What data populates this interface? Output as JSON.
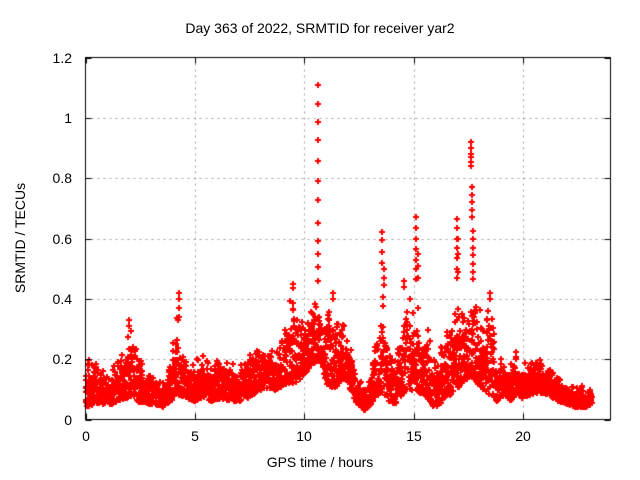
{
  "chart_data": {
    "type": "scatter",
    "title": "Day 363 of 2022, SRMTID for receiver yar2",
    "xlabel": "GPS time / hours",
    "ylabel": "SRMTID / TECUs",
    "xlim": [
      0,
      24
    ],
    "ylim": [
      0,
      1.2
    ],
    "xticks": [
      {
        "v": 0,
        "label": "0"
      },
      {
        "v": 5,
        "label": "5"
      },
      {
        "v": 10,
        "label": "10"
      },
      {
        "v": 15,
        "label": "15"
      },
      {
        "v": 20,
        "label": "20"
      }
    ],
    "yticks": [
      {
        "v": 0,
        "label": "0"
      },
      {
        "v": 0.2,
        "label": "0.2"
      },
      {
        "v": 0.4,
        "label": "0.4"
      },
      {
        "v": 0.6,
        "label": "0.6"
      },
      {
        "v": 0.8,
        "label": "0.8"
      },
      {
        "v": 1,
        "label": "1"
      },
      {
        "v": 1.2,
        "label": "1.2"
      }
    ],
    "grid": true,
    "legend": "none",
    "marker": "plus",
    "marker_color": "#ff0000",
    "grid_color": "#9e9e9e",
    "axis_color": "#000000",
    "background_color": "#ffffff",
    "data_start_hour": 0.0,
    "data_end_hour": 23.15,
    "max_point": {
      "x": 10.65,
      "y": 1.11
    },
    "band_points_per_hour": 110,
    "seed": 42,
    "envelope": [
      [
        0.0,
        0.04,
        0.18
      ],
      [
        0.3,
        0.05,
        0.22
      ],
      [
        0.7,
        0.05,
        0.19
      ],
      [
        1.1,
        0.05,
        0.16
      ],
      [
        1.5,
        0.06,
        0.2
      ],
      [
        1.85,
        0.07,
        0.3
      ],
      [
        2.05,
        0.07,
        0.33
      ],
      [
        2.35,
        0.06,
        0.28
      ],
      [
        2.7,
        0.05,
        0.17
      ],
      [
        3.1,
        0.05,
        0.15
      ],
      [
        3.5,
        0.04,
        0.14
      ],
      [
        3.9,
        0.06,
        0.2
      ],
      [
        4.2,
        0.08,
        0.38
      ],
      [
        4.35,
        0.08,
        0.3
      ],
      [
        4.6,
        0.07,
        0.22
      ],
      [
        5.0,
        0.06,
        0.2
      ],
      [
        5.4,
        0.07,
        0.23
      ],
      [
        5.8,
        0.06,
        0.19
      ],
      [
        6.2,
        0.07,
        0.22
      ],
      [
        6.6,
        0.06,
        0.19
      ],
      [
        7.0,
        0.06,
        0.2
      ],
      [
        7.4,
        0.07,
        0.24
      ],
      [
        7.8,
        0.09,
        0.28
      ],
      [
        8.2,
        0.1,
        0.27
      ],
      [
        8.6,
        0.09,
        0.23
      ],
      [
        9.0,
        0.11,
        0.28
      ],
      [
        9.35,
        0.12,
        0.42
      ],
      [
        9.6,
        0.12,
        0.4
      ],
      [
        9.9,
        0.14,
        0.36
      ],
      [
        10.2,
        0.17,
        0.38
      ],
      [
        10.5,
        0.19,
        0.42
      ],
      [
        10.75,
        0.2,
        0.38
      ],
      [
        11.0,
        0.12,
        0.36
      ],
      [
        11.3,
        0.1,
        0.4
      ],
      [
        11.6,
        0.12,
        0.34
      ],
      [
        11.9,
        0.14,
        0.32
      ],
      [
        12.15,
        0.09,
        0.26
      ],
      [
        12.45,
        0.05,
        0.14
      ],
      [
        12.75,
        0.03,
        0.12
      ],
      [
        13.05,
        0.05,
        0.18
      ],
      [
        13.35,
        0.08,
        0.33
      ],
      [
        13.6,
        0.09,
        0.42
      ],
      [
        13.85,
        0.06,
        0.24
      ],
      [
        14.15,
        0.05,
        0.21
      ],
      [
        14.5,
        0.08,
        0.34
      ],
      [
        14.85,
        0.1,
        0.43
      ],
      [
        15.15,
        0.09,
        0.38
      ],
      [
        15.45,
        0.08,
        0.36
      ],
      [
        15.75,
        0.06,
        0.28
      ],
      [
        16.05,
        0.03,
        0.2
      ],
      [
        16.35,
        0.07,
        0.33
      ],
      [
        16.65,
        0.08,
        0.3
      ],
      [
        16.95,
        0.1,
        0.42
      ],
      [
        17.25,
        0.12,
        0.38
      ],
      [
        17.6,
        0.14,
        0.44
      ],
      [
        17.9,
        0.12,
        0.42
      ],
      [
        18.2,
        0.1,
        0.36
      ],
      [
        18.5,
        0.08,
        0.4
      ],
      [
        18.8,
        0.06,
        0.22
      ],
      [
        19.1,
        0.08,
        0.23
      ],
      [
        19.4,
        0.06,
        0.18
      ],
      [
        19.7,
        0.08,
        0.24
      ],
      [
        20.0,
        0.07,
        0.19
      ],
      [
        20.4,
        0.08,
        0.21
      ],
      [
        20.8,
        0.09,
        0.2
      ],
      [
        21.2,
        0.08,
        0.18
      ],
      [
        21.6,
        0.06,
        0.16
      ],
      [
        22.0,
        0.05,
        0.13
      ],
      [
        22.4,
        0.04,
        0.12
      ],
      [
        22.8,
        0.04,
        0.11
      ],
      [
        23.15,
        0.05,
        0.1
      ]
    ],
    "spikes": [
      [
        10.65,
        [
          1.11,
          1.045,
          0.985,
          0.925,
          0.858,
          0.792,
          0.726,
          0.65,
          0.593,
          0.55,
          0.505,
          0.46
        ]
      ],
      [
        13.57,
        [
          0.62,
          0.595,
          0.555,
          0.52
        ]
      ],
      [
        13.63,
        [
          0.5,
          0.47,
          0.445
        ]
      ],
      [
        15.12,
        [
          0.67,
          0.635,
          0.6,
          0.565,
          0.53,
          0.5,
          0.465
        ]
      ],
      [
        15.22,
        [
          0.55,
          0.51,
          0.47
        ]
      ],
      [
        16.97,
        [
          0.665,
          0.635,
          0.6,
          0.57,
          0.535,
          0.5,
          0.47
        ]
      ],
      [
        17.05,
        [
          0.6,
          0.55,
          0.49
        ]
      ],
      [
        17.6,
        [
          0.92,
          0.9,
          0.88,
          0.87,
          0.855,
          0.84
        ]
      ],
      [
        17.66,
        [
          0.77,
          0.745,
          0.72,
          0.695,
          0.67
        ]
      ],
      [
        17.72,
        [
          0.625,
          0.6,
          0.57,
          0.545,
          0.515,
          0.49,
          0.465
        ]
      ],
      [
        4.27,
        [
          0.42,
          0.4,
          0.37,
          0.34
        ]
      ],
      [
        2.0,
        [
          0.33,
          0.31
        ]
      ],
      [
        9.47,
        [
          0.45,
          0.435
        ]
      ],
      [
        11.32,
        [
          0.42,
          0.4
        ]
      ],
      [
        14.55,
        [
          0.46,
          0.44
        ]
      ],
      [
        18.48,
        [
          0.42,
          0.4
        ]
      ]
    ]
  }
}
